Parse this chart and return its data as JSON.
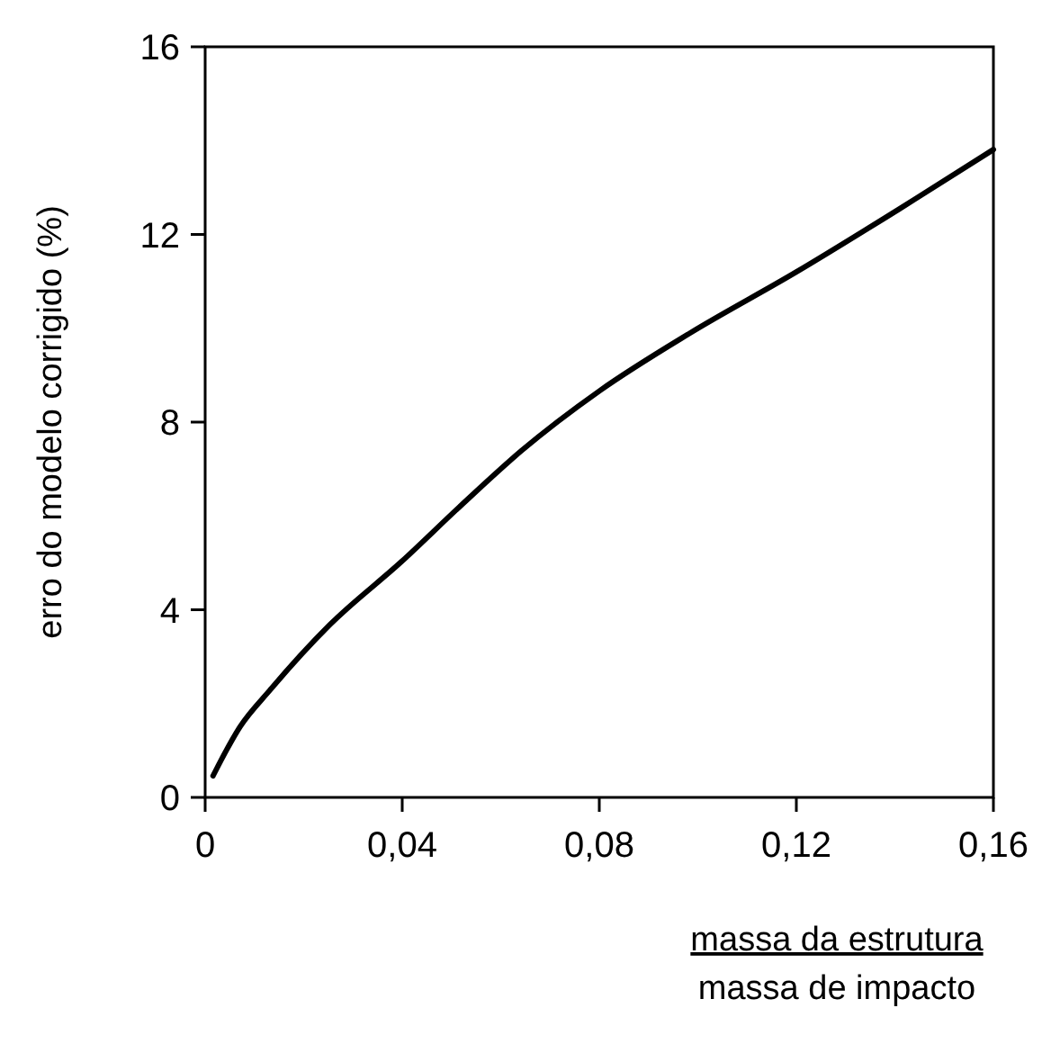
{
  "chart_data": {
    "type": "line",
    "xlabel": "massa da estrutura\nmassa de impacto",
    "ylabel": "erro do modelo corrigido  (%)",
    "xlim": [
      0,
      0.16
    ],
    "xticks": [
      {
        "value": 0,
        "label": "0"
      },
      {
        "value": 0.04,
        "label": "0,04"
      },
      {
        "value": 0.08,
        "label": "0,08"
      },
      {
        "value": 0.12,
        "label": "0,12"
      },
      {
        "value": 0.16,
        "label": "0,16"
      }
    ],
    "ylim": [
      0,
      16
    ],
    "yticks": [
      0,
      4,
      8,
      12,
      16
    ],
    "grid": false,
    "marker": "none",
    "line_style": "solid",
    "series": [
      {
        "color": "#000000",
        "x": [
          0.0016,
          0.0071,
          0.0131,
          0.0253,
          0.0399,
          0.0521,
          0.0642,
          0.0801,
          0.0983,
          0.12,
          0.141,
          0.16
        ],
        "values": [
          0.46,
          1.51,
          2.28,
          3.68,
          5.03,
          6.24,
          7.39,
          8.67,
          9.89,
          11.2,
          12.55,
          13.81
        ]
      }
    ]
  }
}
